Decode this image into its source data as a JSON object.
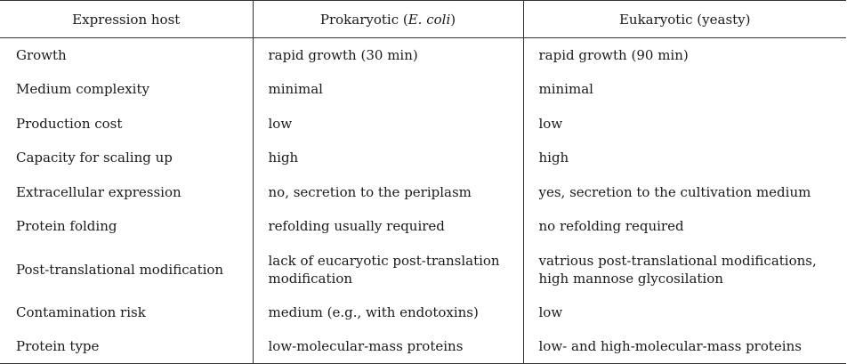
{
  "header": {
    "col1": "Expression host",
    "col2_prefix": "Prokaryotic (",
    "col2_italic": "E. coli",
    "col2_suffix": ")",
    "col3": "Eukaryotic (yeasty)"
  },
  "rows": [
    {
      "property": "Growth",
      "prokaryotic": "rapid growth (30 min)",
      "eukaryotic": "rapid growth (90 min)"
    },
    {
      "property": "Medium complexity",
      "prokaryotic": "minimal",
      "eukaryotic": "minimal"
    },
    {
      "property": "Production cost",
      "prokaryotic": "low",
      "eukaryotic": "low"
    },
    {
      "property": "Capacity for scaling up",
      "prokaryotic": "high",
      "eukaryotic": "high"
    },
    {
      "property": "Extracellular expression",
      "prokaryotic": "no, secretion to the periplasm",
      "eukaryotic": "yes, secretion to the cultivation medium"
    },
    {
      "property": "Protein folding",
      "prokaryotic": "refolding usually required",
      "eukaryotic": "no refolding required"
    },
    {
      "property": "Post-translational modification",
      "prokaryotic": "lack of eucaryotic post-translation modification",
      "eukaryotic": "vatrious post-translational modifications, high mannose glycosilation"
    },
    {
      "property": "Contamination risk",
      "prokaryotic": "medium (e.g., with endotoxins)",
      "eukaryotic": "low"
    },
    {
      "property": "Protein type",
      "prokaryotic": "low-molecular-mass proteins",
      "eukaryotic": "low- and high-molecular-mass proteins"
    }
  ]
}
